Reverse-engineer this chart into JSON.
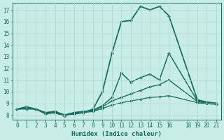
{
  "xlabel": "Humidex (Indice chaleur)",
  "bg_color": "#c8ece6",
  "grid_color": "#b0d8d0",
  "line_color": "#1a6b60",
  "xlim": [
    -0.5,
    21.5
  ],
  "ylim": [
    7.6,
    17.6
  ],
  "xticks": [
    0,
    1,
    2,
    3,
    4,
    5,
    6,
    7,
    8,
    9,
    10,
    11,
    12,
    13,
    14,
    15,
    16,
    18,
    19,
    20,
    21
  ],
  "yticks": [
    8,
    9,
    10,
    11,
    12,
    13,
    14,
    15,
    16,
    17
  ],
  "lines": [
    {
      "x": [
        0,
        1,
        2,
        3,
        4,
        5,
        6,
        7,
        8,
        9,
        10,
        11,
        12,
        13,
        14,
        15,
        16,
        19,
        20,
        21
      ],
      "y": [
        8.5,
        8.7,
        8.5,
        8.1,
        8.2,
        7.9,
        8.1,
        8.2,
        8.5,
        10.0,
        13.3,
        16.0,
        16.1,
        17.3,
        17.0,
        17.3,
        16.5,
        9.3,
        9.1,
        9.0
      ],
      "lw": 1.3
    },
    {
      "x": [
        0,
        1,
        2,
        3,
        4,
        5,
        6,
        7,
        8,
        9,
        10,
        11,
        12,
        13,
        14,
        15,
        16,
        19,
        20,
        21
      ],
      "y": [
        8.5,
        8.6,
        8.5,
        8.2,
        8.3,
        8.0,
        8.2,
        8.3,
        8.4,
        8.8,
        9.5,
        11.6,
        10.8,
        11.2,
        11.5,
        11.0,
        13.3,
        9.2,
        9.1,
        9.0
      ],
      "lw": 1.1
    },
    {
      "x": [
        0,
        1,
        2,
        3,
        4,
        5,
        6,
        7,
        8,
        9,
        10,
        11,
        12,
        13,
        14,
        15,
        16,
        19,
        20,
        21
      ],
      "y": [
        8.5,
        8.6,
        8.5,
        8.2,
        8.3,
        8.0,
        8.2,
        8.3,
        8.35,
        8.7,
        9.2,
        9.5,
        9.8,
        10.1,
        10.4,
        10.6,
        11.0,
        9.15,
        9.0,
        8.95
      ],
      "lw": 1.0
    },
    {
      "x": [
        0,
        1,
        2,
        3,
        4,
        5,
        6,
        7,
        8,
        9,
        10,
        11,
        12,
        13,
        14,
        15,
        16,
        19,
        20,
        21
      ],
      "y": [
        8.5,
        8.5,
        8.5,
        8.2,
        8.2,
        8.0,
        8.1,
        8.2,
        8.3,
        8.55,
        8.85,
        9.05,
        9.2,
        9.35,
        9.5,
        9.55,
        9.65,
        9.05,
        8.95,
        8.9
      ],
      "lw": 0.9
    }
  ]
}
